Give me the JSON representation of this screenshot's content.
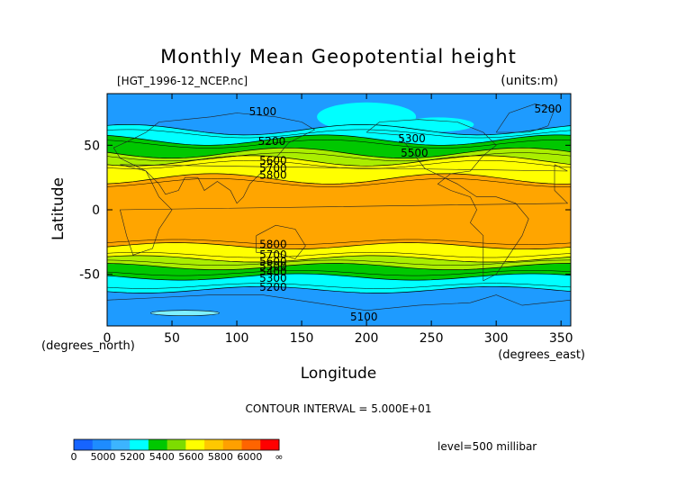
{
  "chart_data": {
    "type": "heatmap",
    "title": "Monthly Mean Geopotential height",
    "file_label": "[HGT_1996-12_NCEP.nc]",
    "units_label": "(units:m)",
    "xlabel": "Longitude",
    "ylabel": "Latitude",
    "x_unit_label": "(degrees_east)",
    "y_unit_label": "(degrees_north)",
    "xlim": [
      0,
      357.5
    ],
    "ylim": [
      -90,
      90
    ],
    "x_ticks": [
      "0",
      "50",
      "100",
      "150",
      "200",
      "250",
      "300",
      "350"
    ],
    "x_tick_values": [
      0,
      50,
      100,
      150,
      200,
      250,
      300,
      350
    ],
    "y_ticks": [
      "50",
      "0",
      "-50"
    ],
    "y_tick_values": [
      50,
      0,
      -50
    ],
    "contour_interval": "CONTOUR INTERVAL = 5.000E+01",
    "level_label": "level=500 millibar",
    "contour_labels": [
      {
        "text": "5100",
        "lon": 120,
        "lat": 76
      },
      {
        "text": "5200",
        "lon": 127,
        "lat": 53
      },
      {
        "text": "5300",
        "lon": 235,
        "lat": 55
      },
      {
        "text": "5500",
        "lon": 237,
        "lat": 44
      },
      {
        "text": "5200",
        "lon": 340,
        "lat": 78
      },
      {
        "text": "5600",
        "lon": 128,
        "lat": 38
      },
      {
        "text": "5700",
        "lon": 128,
        "lat": 32
      },
      {
        "text": "5800",
        "lon": 128,
        "lat": 27
      },
      {
        "text": "5800",
        "lon": 128,
        "lat": -27
      },
      {
        "text": "5700",
        "lon": 128,
        "lat": -35
      },
      {
        "text": "5600",
        "lon": 128,
        "lat": -40
      },
      {
        "text": "5500",
        "lon": 128,
        "lat": -44
      },
      {
        "text": "5400",
        "lon": 128,
        "lat": -48
      },
      {
        "text": "5300",
        "lon": 128,
        "lat": -53
      },
      {
        "text": "5200",
        "lon": 128,
        "lat": -60
      },
      {
        "text": "5100",
        "lon": 198,
        "lat": -83
      }
    ],
    "colorbar": {
      "labels": [
        "0",
        "5000",
        "5200",
        "5400",
        "5600",
        "5800",
        "6000",
        "∞"
      ],
      "colors": [
        "#1664ff",
        "#1e8cff",
        "#3cb4ff",
        "#00ffff",
        "#00c800",
        "#7ddc00",
        "#ffff00",
        "#ffc800",
        "#ffa000",
        "#ff6400",
        "#ff0000"
      ]
    },
    "band_colors": {
      "polar": "#1e9bff",
      "mid": "#00ffff",
      "green": "#00c800",
      "lime": "#aaee00",
      "yellow": "#ffff00",
      "tropics": "#ffa500",
      "antarctic_low": "#7ff0ff"
    },
    "grid": false
  }
}
